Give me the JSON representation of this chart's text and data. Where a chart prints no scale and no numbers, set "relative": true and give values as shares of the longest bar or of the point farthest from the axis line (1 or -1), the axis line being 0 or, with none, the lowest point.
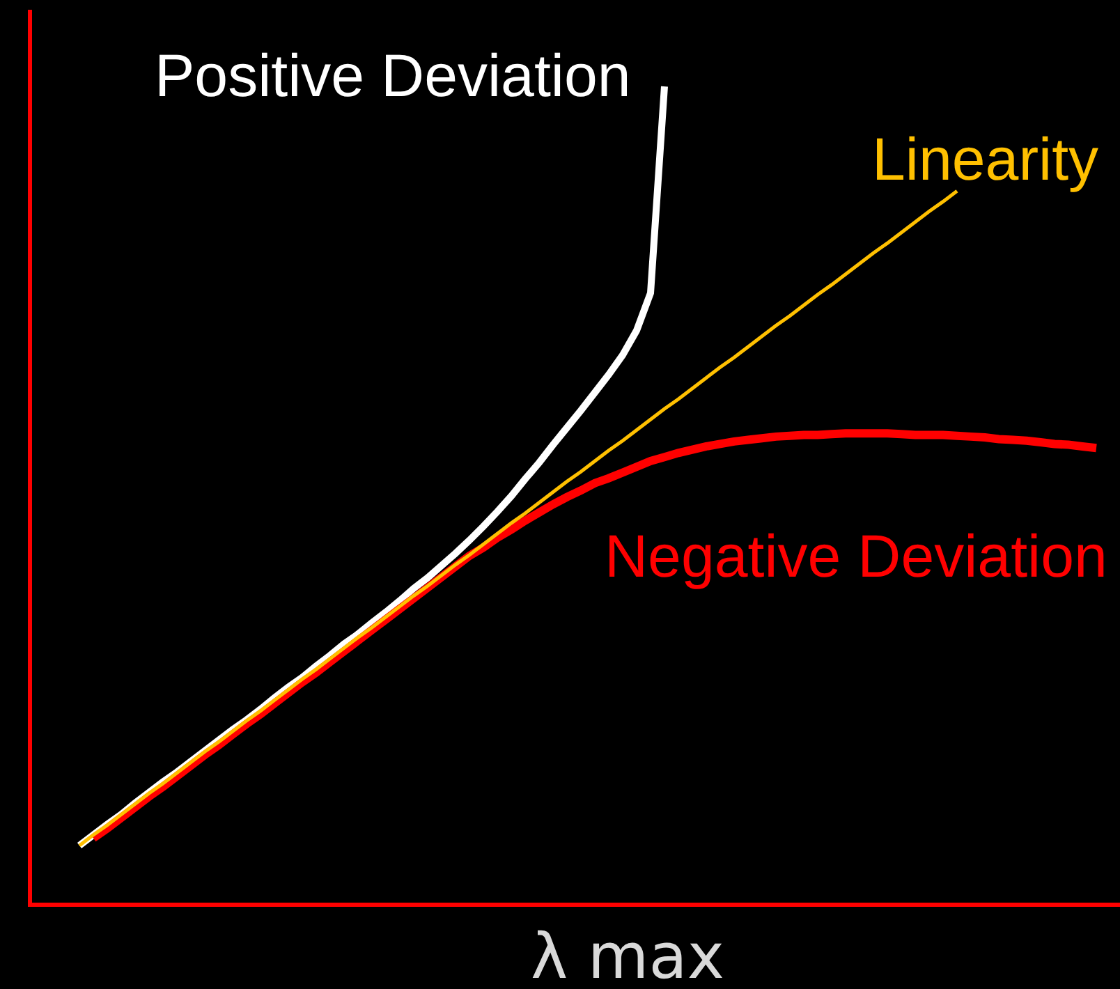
{
  "chart_data": {
    "type": "line",
    "relative": true,
    "xlabel": "λ max",
    "categories": [
      null,
      null,
      null,
      null,
      null,
      null,
      null,
      null,
      null,
      null,
      null,
      null,
      null,
      null,
      null,
      null,
      null,
      null,
      null,
      null,
      null,
      null,
      null,
      null,
      null,
      null,
      null,
      null,
      null,
      null,
      null,
      null,
      null,
      null,
      null,
      null,
      null,
      null,
      null,
      null,
      null,
      null,
      null,
      null,
      null,
      null,
      null,
      null,
      null,
      null,
      null,
      null,
      null,
      null,
      null,
      null,
      null,
      null,
      null,
      null,
      null,
      null,
      null,
      null,
      null,
      null,
      null,
      null,
      null,
      null,
      null,
      null,
      null,
      null
    ],
    "series": [
      {
        "name": "Positive Deviation",
        "color": "#ffffff",
        "values": [
          0.07,
          0.083,
          0.096,
          0.108,
          0.122,
          0.135,
          0.148,
          0.16,
          0.173,
          0.186,
          0.199,
          0.212,
          0.224,
          0.237,
          0.251,
          0.264,
          0.276,
          0.29,
          0.303,
          0.317,
          0.329,
          0.343,
          0.356,
          0.37,
          0.385,
          0.398,
          0.413,
          0.428,
          0.444,
          0.461,
          0.479,
          0.498,
          0.519,
          0.539,
          0.561,
          0.582,
          0.603,
          0.625,
          0.647,
          0.671,
          0.701,
          0.747,
          1.0,
          null,
          null,
          null,
          null,
          null,
          null,
          null,
          null,
          null,
          null,
          null,
          null,
          null,
          null,
          null,
          null,
          null,
          null,
          null,
          null,
          null,
          null,
          null,
          null,
          null,
          null,
          null,
          null,
          null,
          null,
          null
        ]
      },
      {
        "name": "Negative Deviation",
        "color": "#ff0000",
        "values": [
          null,
          0.079,
          0.091,
          0.104,
          0.117,
          0.13,
          0.142,
          0.155,
          0.168,
          0.181,
          0.193,
          0.206,
          0.219,
          0.231,
          0.244,
          0.257,
          0.27,
          0.282,
          0.295,
          0.308,
          0.321,
          0.334,
          0.347,
          0.36,
          0.373,
          0.386,
          0.399,
          0.412,
          0.425,
          0.435,
          0.447,
          0.457,
          0.468,
          0.478,
          0.488,
          0.497,
          0.505,
          0.514,
          0.52,
          0.527,
          0.534,
          0.541,
          0.546,
          0.551,
          0.555,
          0.559,
          0.562,
          0.565,
          0.567,
          0.569,
          0.571,
          0.572,
          0.573,
          0.573,
          0.574,
          0.575,
          0.575,
          0.575,
          0.575,
          0.574,
          0.573,
          0.573,
          0.573,
          0.572,
          0.571,
          0.57,
          0.568,
          0.567,
          0.566,
          0.564,
          0.562,
          0.561,
          0.559,
          0.557
        ]
      },
      {
        "name": "Linearity",
        "color": "#ffc000",
        "values": [
          0.07,
          0.083,
          0.095,
          0.108,
          0.121,
          0.134,
          0.146,
          0.159,
          0.172,
          0.185,
          0.197,
          0.21,
          0.223,
          0.235,
          0.248,
          0.261,
          0.274,
          0.286,
          0.299,
          0.312,
          0.325,
          0.337,
          0.35,
          0.363,
          0.376,
          0.388,
          0.401,
          0.414,
          0.426,
          0.439,
          0.452,
          0.465,
          0.477,
          0.49,
          0.503,
          0.516,
          0.528,
          0.541,
          0.554,
          0.566,
          0.579,
          0.592,
          0.605,
          0.617,
          0.63,
          0.643,
          0.656,
          0.668,
          0.681,
          0.694,
          0.707,
          0.719,
          0.732,
          0.745,
          0.757,
          0.77,
          0.783,
          0.796,
          0.808,
          0.821,
          0.834,
          0.847,
          0.859,
          0.872,
          null,
          null,
          null,
          null,
          null,
          null,
          null,
          null,
          null,
          null
        ]
      }
    ]
  }
}
